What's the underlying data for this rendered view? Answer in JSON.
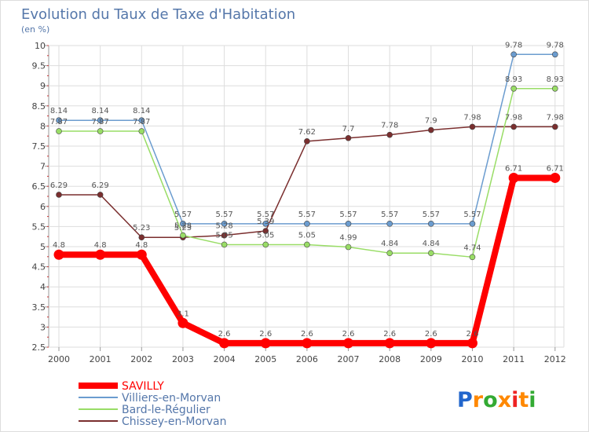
{
  "chart_data": {
    "type": "line",
    "title": "Evolution du Taux de Taxe d'Habitation",
    "subtitle": "(en %)",
    "x": [
      "2000",
      "2001",
      "2002",
      "2003",
      "2004",
      "2005",
      "2006",
      "2007",
      "2008",
      "2009",
      "2010",
      "2011",
      "2012"
    ],
    "ylim": [
      2.5,
      10
    ],
    "yticks": [
      "2.5",
      "3",
      "3.5",
      "4",
      "4.5",
      "5",
      "5.5",
      "6",
      "6.5",
      "7",
      "7.5",
      "8",
      "8.5",
      "9",
      "9.5",
      "10"
    ],
    "grid": true,
    "legend_position": "bottom-left",
    "series": [
      {
        "name": "SAVILLY",
        "color": "#ff0000",
        "values": [
          4.8,
          4.8,
          4.8,
          3.1,
          2.6,
          2.6,
          2.6,
          2.6,
          2.6,
          2.6,
          2.6,
          6.71,
          6.71
        ],
        "labels": [
          "4.8",
          "4.8",
          "4.8",
          "3.1",
          "2.6",
          "2.6",
          "2.6",
          "2.6",
          "2.6",
          "2.6",
          "2.6",
          "6.71",
          "6.71"
        ]
      },
      {
        "name": "Villiers-en-Morvan",
        "color": "#6b9ccf",
        "values": [
          8.14,
          8.14,
          8.14,
          5.57,
          5.57,
          5.57,
          5.57,
          5.57,
          5.57,
          5.57,
          5.57,
          9.78,
          9.78
        ],
        "labels": [
          "8.14",
          "8.14",
          "8.14",
          "5.57",
          "5.57",
          "5.57",
          "5.57",
          "5.57",
          "5.57",
          "5.57",
          "5.57",
          "9.78",
          "9.78"
        ]
      },
      {
        "name": "Bard-le-Régulier",
        "color": "#99dd66",
        "values": [
          7.87,
          7.87,
          7.87,
          5.28,
          5.05,
          5.05,
          5.05,
          4.99,
          4.84,
          4.84,
          4.74,
          8.93,
          8.93
        ],
        "labels": [
          "7.87",
          "7.87",
          "7.87",
          "5.28",
          "5.05",
          "5.05",
          "5.05",
          "4.99",
          "4.84",
          "4.84",
          "4.74",
          "8.93",
          "8.93"
        ]
      },
      {
        "name": "Chissey-en-Morvan",
        "color": "#7a2e2e",
        "values": [
          6.29,
          6.29,
          5.23,
          5.23,
          5.28,
          5.39,
          7.62,
          7.7,
          7.78,
          7.9,
          7.98,
          7.98,
          7.98
        ],
        "labels": [
          "6.29",
          "6.29",
          "5.23",
          "5.23",
          "5.28",
          "5.39",
          "7.62",
          "7.7",
          "7.78",
          "7.9",
          "7.98",
          "7.98",
          "7.98"
        ]
      }
    ]
  },
  "logo": {
    "text": "Proxiti",
    "colors": [
      "#2266cc",
      "#ff8800",
      "#33aa33",
      "#ee2222"
    ]
  }
}
